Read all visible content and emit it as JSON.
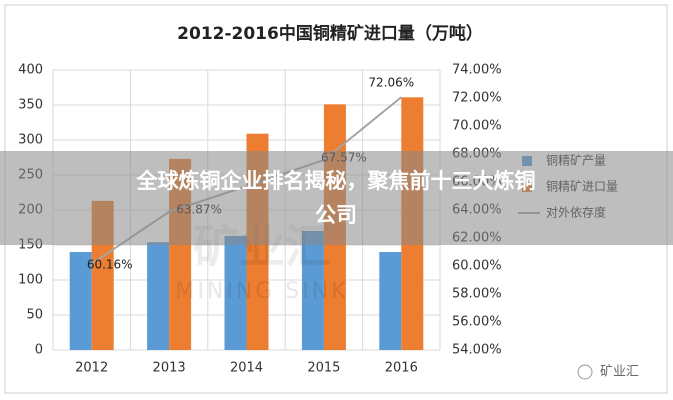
{
  "chart_data": {
    "type": "bar",
    "title": "2012-2016中国铜精矿进口量（万吨）",
    "categories": [
      "2012",
      "2013",
      "2014",
      "2015",
      "2016"
    ],
    "series": [
      {
        "name": "铜精矿产量",
        "color": "#5b9bd5",
        "values": [
          140,
          154,
          163,
          170,
          140
        ]
      },
      {
        "name": "铜精矿进口量",
        "color": "#ed7d31",
        "values": [
          213,
          273,
          309,
          351,
          361
        ]
      },
      {
        "name": "对外依存度",
        "color": "#a5a5a5",
        "type": "line",
        "axis": "y2",
        "values": [
          60.16,
          63.87,
          65.7,
          67.57,
          72.06
        ],
        "value_labels": [
          "60.16%",
          "63.87%",
          null,
          "67.57%",
          "72.06%"
        ]
      }
    ],
    "ylim": [
      0,
      400
    ],
    "yticks": [
      0,
      50,
      100,
      150,
      200,
      250,
      300,
      350,
      400
    ],
    "y2lim": [
      54,
      74
    ],
    "y2ticks": [
      {
        "value": 54,
        "label": "54.00%"
      },
      {
        "value": 56,
        "label": "56.00%"
      },
      {
        "value": 58,
        "label": "58.00%"
      },
      {
        "value": 60,
        "label": "60.00%"
      },
      {
        "value": 62,
        "label": "62.00%"
      },
      {
        "value": 64,
        "label": "64.00%"
      },
      {
        "value": 66,
        "label": "66.00%"
      },
      {
        "value": 68,
        "label": "68.00%"
      },
      {
        "value": 70,
        "label": "70.00%"
      },
      {
        "value": 72,
        "label": "72.00%"
      },
      {
        "value": 74,
        "label": "74.00%"
      }
    ],
    "grid": true,
    "legend": "right"
  },
  "watermark": {
    "cn": "矿业汇",
    "en": "MINING SINK"
  },
  "logo": "矿业汇",
  "banner": {
    "lines": [
      "全球炼铜企业排名揭秘，聚焦前十三大炼铜",
      "公司"
    ]
  }
}
